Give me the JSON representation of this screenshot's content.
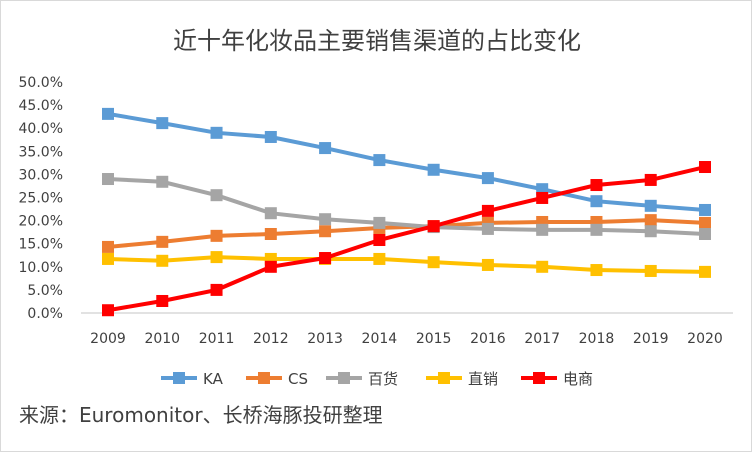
{
  "chart_data": {
    "type": "line",
    "title": "近十年化妆品主要销售渠道的占比变化",
    "categories": [
      "2009",
      "2010",
      "2011",
      "2012",
      "2013",
      "2014",
      "2015",
      "2016",
      "2017",
      "2018",
      "2019",
      "2020"
    ],
    "ylim": [
      0,
      50
    ],
    "yticks": [
      "0.0%",
      "5.0%",
      "10.0%",
      "15.0%",
      "20.0%",
      "25.0%",
      "30.0%",
      "35.0%",
      "40.0%",
      "45.0%",
      "50.0%"
    ],
    "grid": false,
    "legend": "bottom",
    "series": [
      {
        "name": "KA",
        "color": "#5B9BD5",
        "values": [
          43.1,
          41.1,
          39.0,
          38.1,
          35.7,
          33.1,
          31.0,
          29.2,
          26.8,
          24.2,
          23.2,
          22.3
        ]
      },
      {
        "name": "CS",
        "color": "#ED7D31",
        "values": [
          14.3,
          15.4,
          16.7,
          17.1,
          17.7,
          18.4,
          18.8,
          19.5,
          19.7,
          19.7,
          20.1,
          19.5
        ]
      },
      {
        "name": "百货",
        "color": "#A5A5A5",
        "values": [
          29.0,
          28.4,
          25.5,
          21.6,
          20.3,
          19.5,
          18.6,
          18.2,
          18.0,
          18.0,
          17.7,
          17.1
        ]
      },
      {
        "name": "直销",
        "color": "#FFC000",
        "values": [
          11.7,
          11.3,
          12.1,
          11.7,
          11.7,
          11.7,
          11.0,
          10.4,
          10.0,
          9.3,
          9.1,
          8.9
        ]
      },
      {
        "name": "电商",
        "color": "#FF0000",
        "values": [
          0.6,
          2.6,
          5.0,
          10.0,
          11.9,
          15.8,
          18.8,
          22.1,
          24.9,
          27.7,
          28.8,
          31.6
        ]
      }
    ]
  },
  "source": "来源：Euromonitor、长桥海豚投研整理"
}
